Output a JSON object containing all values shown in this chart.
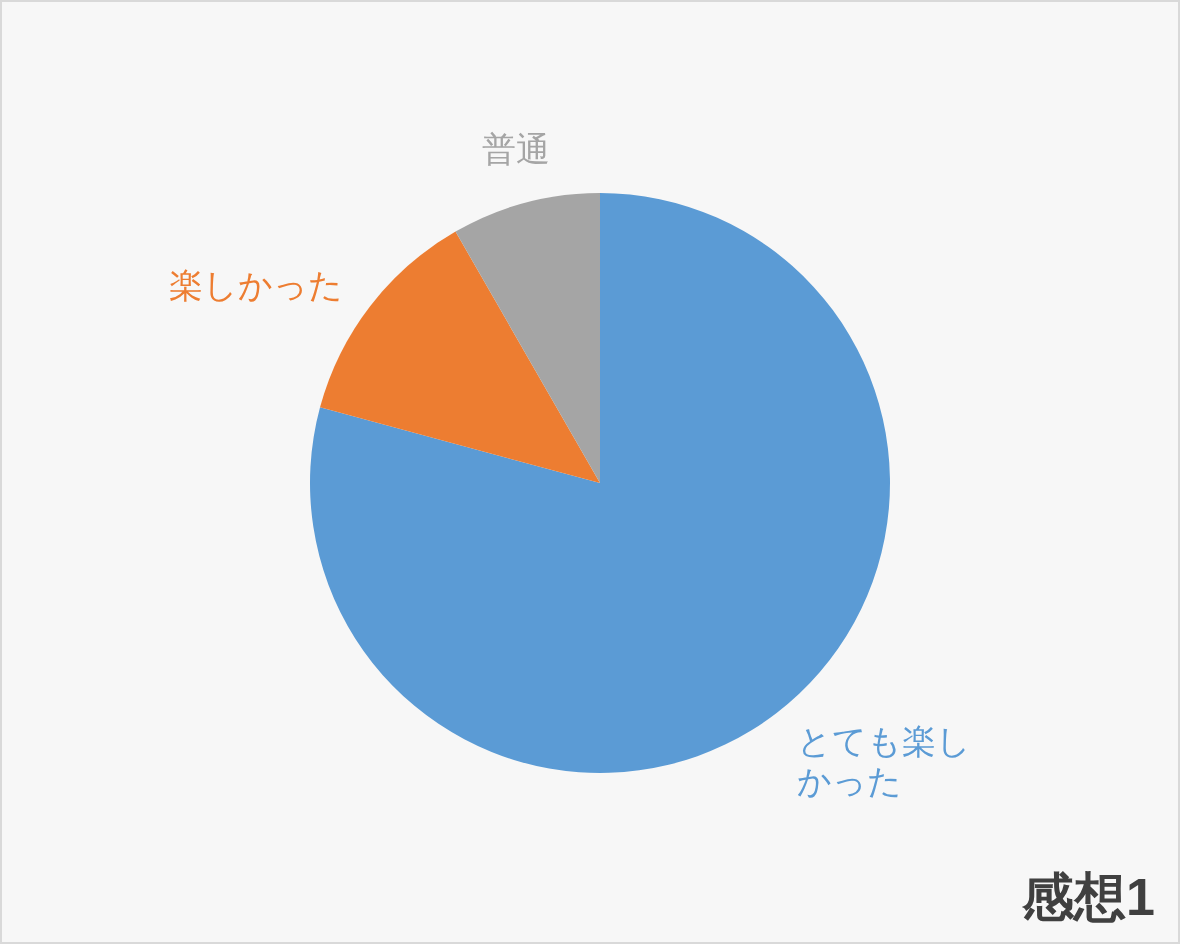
{
  "chart_data": {
    "type": "pie",
    "title": "感想1",
    "categories": [
      "とても楽しかった",
      "楽しかった",
      "普通"
    ],
    "values": [
      79.2,
      12.5,
      8.3
    ],
    "colors": [
      "#5b9bd5",
      "#ed7d31",
      "#a5a5a5"
    ]
  }
}
